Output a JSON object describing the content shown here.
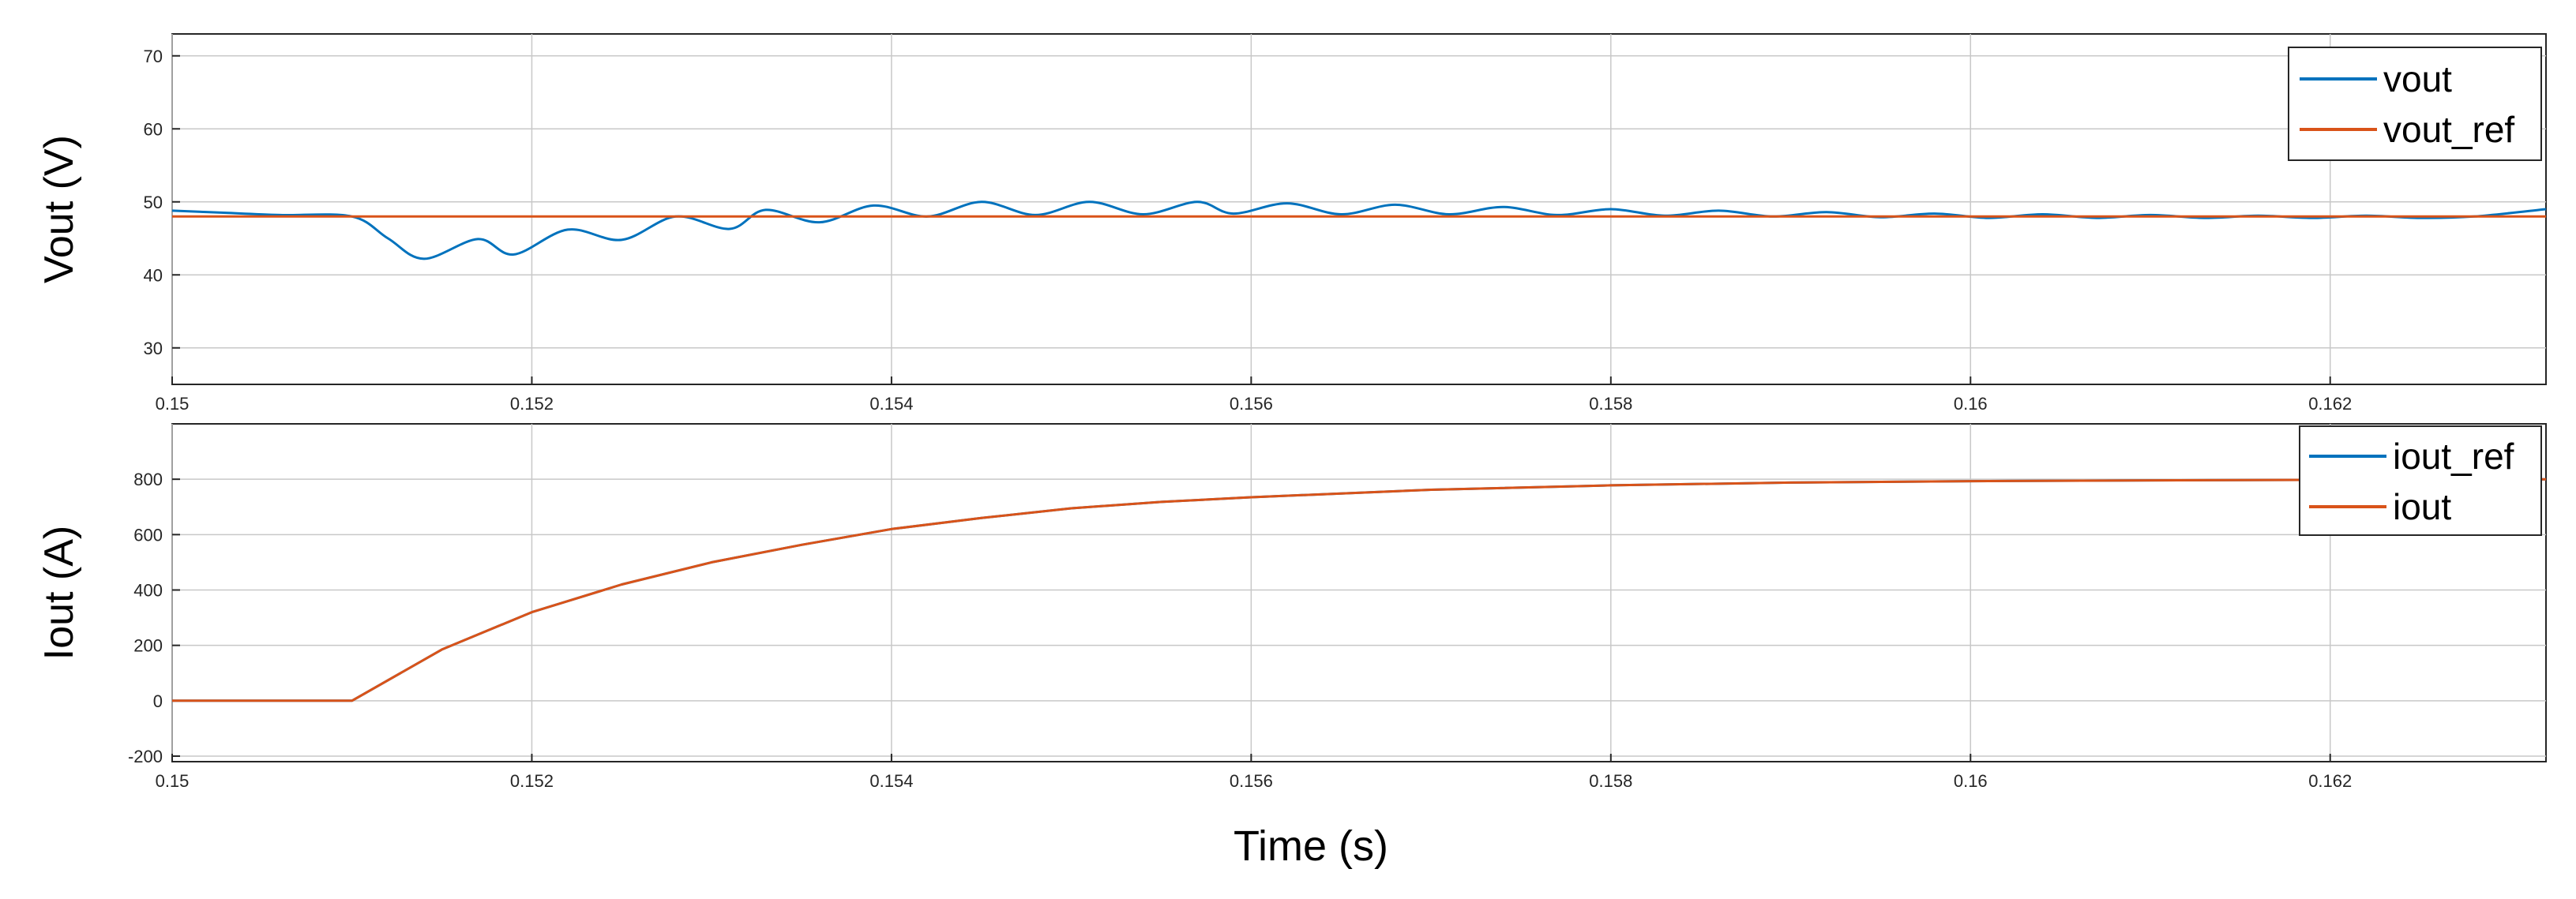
{
  "chart_data": [
    {
      "type": "line",
      "ylabel": "Vout (V)",
      "xlabel": "",
      "xlim": [
        0.15,
        0.1632
      ],
      "ylim": [
        25,
        73
      ],
      "xticks": [
        0.15,
        0.152,
        0.154,
        0.156,
        0.158,
        0.16,
        0.162
      ],
      "xtick_labels": [
        "0.15",
        "0.152",
        "0.154",
        "0.156",
        "0.158",
        "0.16",
        "0.162"
      ],
      "yticks": [
        30,
        40,
        50,
        60,
        70
      ],
      "ytick_labels": [
        "30",
        "40",
        "50",
        "60",
        "70"
      ],
      "grid": true,
      "legend_position": "top-right",
      "series": [
        {
          "name": "vout",
          "color": "#0072BD",
          "x": [
            0.15,
            0.1503,
            0.1506,
            0.151,
            0.1512,
            0.1514,
            0.1517,
            0.1519,
            0.1522,
            0.1525,
            0.1528,
            0.1531,
            0.1533,
            0.1536,
            0.1539,
            0.1542,
            0.1545,
            0.1548,
            0.1551,
            0.1554,
            0.1557,
            0.1559,
            0.1562,
            0.1565,
            0.1568,
            0.1571,
            0.1574,
            0.1577,
            0.158,
            0.1583,
            0.1586,
            0.1589,
            0.1592,
            0.1595,
            0.1598,
            0.1601,
            0.1604,
            0.1607,
            0.161,
            0.1613,
            0.1616,
            0.1619,
            0.1622,
            0.1625,
            0.1628,
            0.1632
          ],
          "y": [
            48.8,
            48.5,
            48.2,
            48.0,
            45.0,
            42.2,
            44.9,
            42.8,
            46.2,
            44.8,
            48.0,
            46.3,
            48.9,
            47.2,
            49.5,
            48.0,
            50.0,
            48.2,
            50.0,
            48.3,
            50.0,
            48.4,
            49.8,
            48.3,
            49.6,
            48.3,
            49.3,
            48.2,
            49.0,
            48.1,
            48.8,
            48.0,
            48.6,
            47.9,
            48.4,
            47.8,
            48.3,
            47.8,
            48.2,
            47.8,
            48.1,
            47.8,
            48.1,
            47.8,
            48.0,
            49.0
          ]
        },
        {
          "name": "vout_ref",
          "color": "#D95319",
          "x": [
            0.15,
            0.1632
          ],
          "y": [
            48,
            48
          ]
        }
      ]
    },
    {
      "type": "line",
      "ylabel": "Iout (A)",
      "xlabel": "Time (s)",
      "xlim": [
        0.15,
        0.1632
      ],
      "ylim": [
        -220,
        1000
      ],
      "xticks": [
        0.15,
        0.152,
        0.154,
        0.156,
        0.158,
        0.16,
        0.162
      ],
      "xtick_labels": [
        "0.15",
        "0.152",
        "0.154",
        "0.156",
        "0.158",
        "0.16",
        "0.162"
      ],
      "yticks": [
        -200,
        0,
        200,
        400,
        600,
        800
      ],
      "ytick_labels": [
        "-200",
        "0",
        "200",
        "400",
        "600",
        "800"
      ],
      "grid": true,
      "legend_position": "top-right",
      "series": [
        {
          "name": "iout_ref",
          "color": "#0072BD",
          "x": [
            0.15,
            0.151,
            0.1515,
            0.152,
            0.1525,
            0.153,
            0.1535,
            0.154,
            0.1545,
            0.155,
            0.1555,
            0.156,
            0.157,
            0.158,
            0.159,
            0.16,
            0.161,
            0.162,
            0.1632
          ],
          "y": [
            0,
            0,
            185,
            320,
            420,
            500,
            563,
            620,
            660,
            695,
            718,
            735,
            762,
            778,
            788,
            793,
            796,
            798,
            800
          ]
        },
        {
          "name": "iout",
          "color": "#D95319",
          "x": [
            0.15,
            0.151,
            0.1515,
            0.152,
            0.1525,
            0.153,
            0.1535,
            0.154,
            0.1545,
            0.155,
            0.1555,
            0.156,
            0.157,
            0.158,
            0.159,
            0.16,
            0.161,
            0.162,
            0.1632
          ],
          "y": [
            0,
            0,
            185,
            320,
            420,
            500,
            563,
            620,
            660,
            695,
            718,
            735,
            762,
            778,
            788,
            793,
            796,
            798,
            800
          ]
        }
      ]
    }
  ]
}
